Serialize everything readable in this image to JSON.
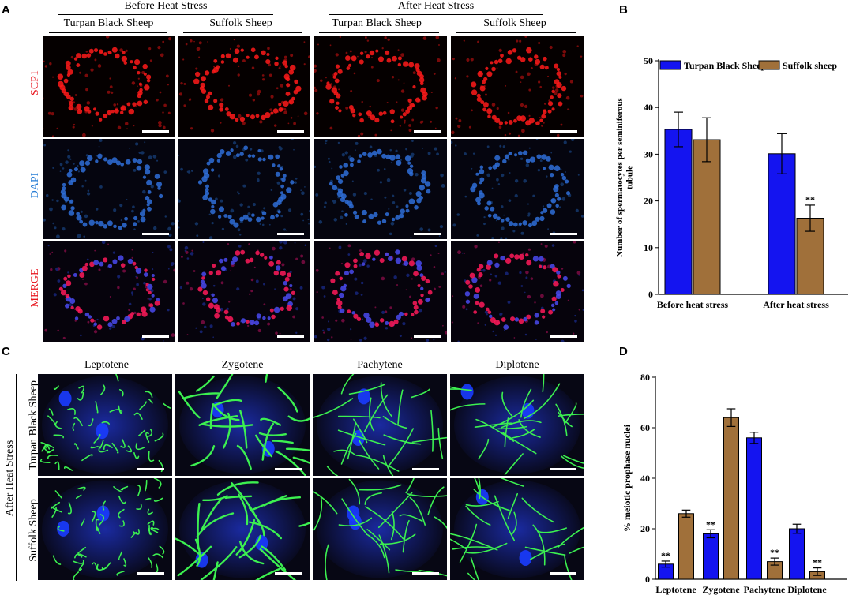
{
  "panels": {
    "a_label": "A",
    "b_label": "B",
    "c_label": "C",
    "d_label": "D"
  },
  "panel_a": {
    "group_headers": [
      "Before Heat Stress",
      "After Heat Stress"
    ],
    "column_headers": [
      "Turpan Black Sheep",
      "Suffolk Sheep",
      "Turpan Black Sheep",
      "Suffolk Sheep"
    ],
    "row_labels": [
      "SCP1",
      "DAPI",
      "MERGE"
    ],
    "row_label_colors": [
      "#e8141d",
      "#2a7fd6",
      "#e8141d"
    ]
  },
  "panel_c": {
    "stage_headers": [
      "Leptotene",
      "Zygotene",
      "Pachytene",
      "Diplotene"
    ],
    "side_group_label": "After Heat Stress",
    "row_labels": [
      "Turpan Black Sheep",
      "Suffolk Sheep"
    ]
  },
  "chart_data": [
    {
      "type": "bar",
      "panel": "B",
      "categories": [
        "Before heat stress",
        "After heat stress"
      ],
      "series": [
        {
          "name": "Turpan Black Sheep",
          "color": "#1414f0",
          "values": [
            35.3,
            30.1
          ],
          "errors": [
            3.7,
            4.3
          ]
        },
        {
          "name": "Suffolk sheep",
          "color": "#a0703a",
          "values": [
            33.1,
            16.3
          ],
          "errors": [
            4.7,
            2.8
          ]
        }
      ],
      "significance": [
        [
          "",
          ""
        ],
        [
          "",
          "**"
        ]
      ],
      "ylabel": "Number of spermatocytes per seminiferous tubule",
      "ylim": [
        0,
        50
      ],
      "yticks": [
        "0",
        "10",
        "20",
        "30",
        "40",
        "50"
      ],
      "legend": "top",
      "grid": false
    },
    {
      "type": "bar",
      "panel": "D",
      "categories": [
        "Leptotene",
        "Zygotene",
        "Pachytene",
        "Diplotene"
      ],
      "series": [
        {
          "name": "Turpan Black Sheep",
          "color": "#1414f0",
          "values": [
            6,
            18,
            56,
            20
          ],
          "errors": [
            1.2,
            1.6,
            2.2,
            1.8
          ]
        },
        {
          "name": "Suffolk sheep",
          "color": "#a0703a",
          "values": [
            26,
            64,
            7,
            3
          ],
          "errors": [
            1.4,
            3.5,
            1.4,
            1.5
          ]
        }
      ],
      "significance": [
        [
          "**",
          ""
        ],
        [
          "**",
          ""
        ],
        [
          "",
          "**"
        ],
        [
          "",
          "**"
        ]
      ],
      "ylabel": "% meiotic prophase nuclei",
      "ylim": [
        0,
        80
      ],
      "yticks": [
        "0",
        "20",
        "40",
        "60",
        "80"
      ],
      "grid": false
    }
  ]
}
